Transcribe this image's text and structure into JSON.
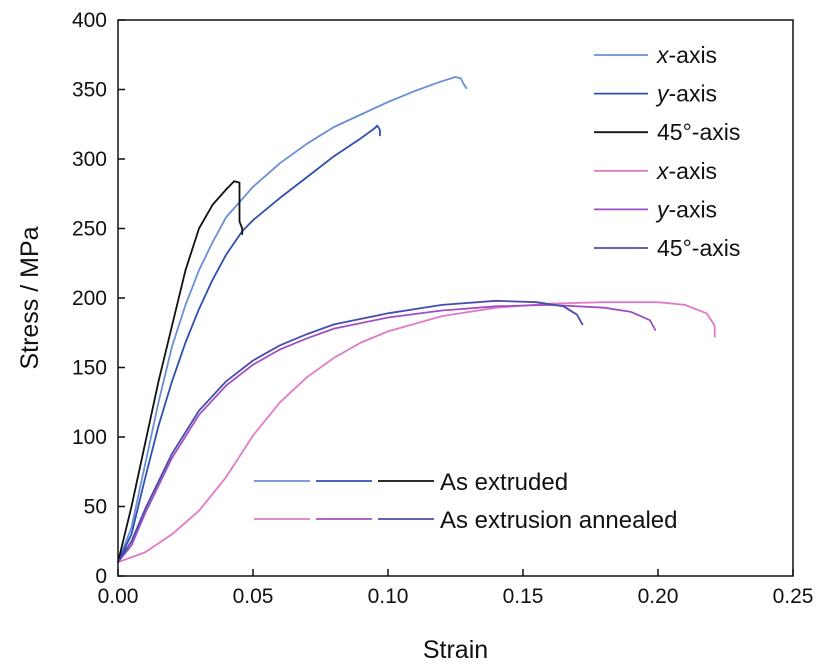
{
  "chart_data": {
    "type": "line",
    "title": "",
    "xlabel": "Strain",
    "ylabel": "Stress / MPa",
    "xlim": [
      0.0,
      0.25
    ],
    "ylim": [
      0,
      400
    ],
    "x_ticks": [
      "0.00",
      "0.05",
      "0.10",
      "0.15",
      "0.20",
      "0.25"
    ],
    "y_ticks": [
      "0",
      "50",
      "100",
      "150",
      "200",
      "250",
      "300",
      "350",
      "400"
    ],
    "grid": false,
    "legend_position": "top-right",
    "group_legend_position": "bottom-center",
    "groups": [
      {
        "label": "As extruded",
        "series": [
          0,
          1,
          2
        ]
      },
      {
        "label": "As extrusion annealed",
        "series": [
          3,
          4,
          5
        ]
      }
    ],
    "series": [
      {
        "name_italic": "x",
        "name_rest": "-axis",
        "color": "#6a8fd6",
        "group": "As extruded",
        "points": [
          [
            0,
            10
          ],
          [
            0.005,
            35
          ],
          [
            0.01,
            80
          ],
          [
            0.015,
            125
          ],
          [
            0.02,
            165
          ],
          [
            0.025,
            195
          ],
          [
            0.03,
            220
          ],
          [
            0.035,
            240
          ],
          [
            0.04,
            258
          ],
          [
            0.05,
            280
          ],
          [
            0.06,
            297
          ],
          [
            0.07,
            311
          ],
          [
            0.08,
            323
          ],
          [
            0.09,
            332
          ],
          [
            0.1,
            341
          ],
          [
            0.11,
            349
          ],
          [
            0.12,
            356
          ],
          [
            0.125,
            359
          ],
          [
            0.127,
            358
          ],
          [
            0.128,
            354
          ],
          [
            0.129,
            351
          ]
        ]
      },
      {
        "name_italic": "y",
        "name_rest": "-axis",
        "color": "#2e4fb0",
        "group": "As extruded",
        "points": [
          [
            0,
            10
          ],
          [
            0.005,
            30
          ],
          [
            0.01,
            70
          ],
          [
            0.015,
            108
          ],
          [
            0.02,
            140
          ],
          [
            0.025,
            168
          ],
          [
            0.03,
            192
          ],
          [
            0.035,
            213
          ],
          [
            0.04,
            231
          ],
          [
            0.046,
            248
          ],
          [
            0.05,
            256
          ],
          [
            0.06,
            272
          ],
          [
            0.07,
            287
          ],
          [
            0.08,
            302
          ],
          [
            0.09,
            315
          ],
          [
            0.095,
            322
          ],
          [
            0.096,
            324
          ],
          [
            0.097,
            321
          ],
          [
            0.097,
            317
          ]
        ]
      },
      {
        "name_italic": "",
        "name_rest": "45°-axis",
        "color": "#111111",
        "group": "As extruded",
        "points": [
          [
            0,
            10
          ],
          [
            0.005,
            50
          ],
          [
            0.01,
            95
          ],
          [
            0.015,
            140
          ],
          [
            0.02,
            180
          ],
          [
            0.025,
            220
          ],
          [
            0.03,
            250
          ],
          [
            0.035,
            267
          ],
          [
            0.04,
            278
          ],
          [
            0.043,
            284
          ],
          [
            0.045,
            283
          ],
          [
            0.045,
            255
          ],
          [
            0.046,
            250
          ],
          [
            0.046,
            246
          ]
        ]
      },
      {
        "name_italic": "x",
        "name_rest": "-axis",
        "color": "#e27ac6",
        "group": "As extrusion annealed",
        "points": [
          [
            0,
            10
          ],
          [
            0.01,
            17
          ],
          [
            0.02,
            30
          ],
          [
            0.03,
            47
          ],
          [
            0.04,
            71
          ],
          [
            0.05,
            101
          ],
          [
            0.06,
            125
          ],
          [
            0.07,
            143
          ],
          [
            0.08,
            157
          ],
          [
            0.09,
            168
          ],
          [
            0.1,
            176
          ],
          [
            0.12,
            187
          ],
          [
            0.14,
            193
          ],
          [
            0.16,
            196
          ],
          [
            0.18,
            197
          ],
          [
            0.19,
            197
          ],
          [
            0.2,
            197
          ],
          [
            0.21,
            195
          ],
          [
            0.218,
            189
          ],
          [
            0.221,
            180
          ],
          [
            0.221,
            172
          ]
        ]
      },
      {
        "name_italic": "y",
        "name_rest": "-axis",
        "color": "#a04fc2",
        "group": "As extrusion annealed",
        "points": [
          [
            0,
            10
          ],
          [
            0.005,
            22
          ],
          [
            0.01,
            45
          ],
          [
            0.02,
            85
          ],
          [
            0.03,
            116
          ],
          [
            0.04,
            137
          ],
          [
            0.05,
            152
          ],
          [
            0.06,
            163
          ],
          [
            0.07,
            171
          ],
          [
            0.08,
            178
          ],
          [
            0.1,
            186
          ],
          [
            0.12,
            191
          ],
          [
            0.14,
            194
          ],
          [
            0.16,
            195
          ],
          [
            0.18,
            193
          ],
          [
            0.19,
            190
          ],
          [
            0.197,
            184
          ],
          [
            0.199,
            177
          ]
        ]
      },
      {
        "name_italic": "",
        "name_rest": "45°-axis",
        "color": "#4a4db0",
        "group": "As extrusion annealed",
        "points": [
          [
            0,
            10
          ],
          [
            0.005,
            25
          ],
          [
            0.01,
            48
          ],
          [
            0.02,
            88
          ],
          [
            0.03,
            119
          ],
          [
            0.04,
            140
          ],
          [
            0.05,
            155
          ],
          [
            0.06,
            166
          ],
          [
            0.07,
            174
          ],
          [
            0.08,
            181
          ],
          [
            0.1,
            189
          ],
          [
            0.12,
            195
          ],
          [
            0.14,
            198
          ],
          [
            0.155,
            197
          ],
          [
            0.165,
            194
          ],
          [
            0.17,
            188
          ],
          [
            0.172,
            181
          ]
        ]
      }
    ]
  }
}
